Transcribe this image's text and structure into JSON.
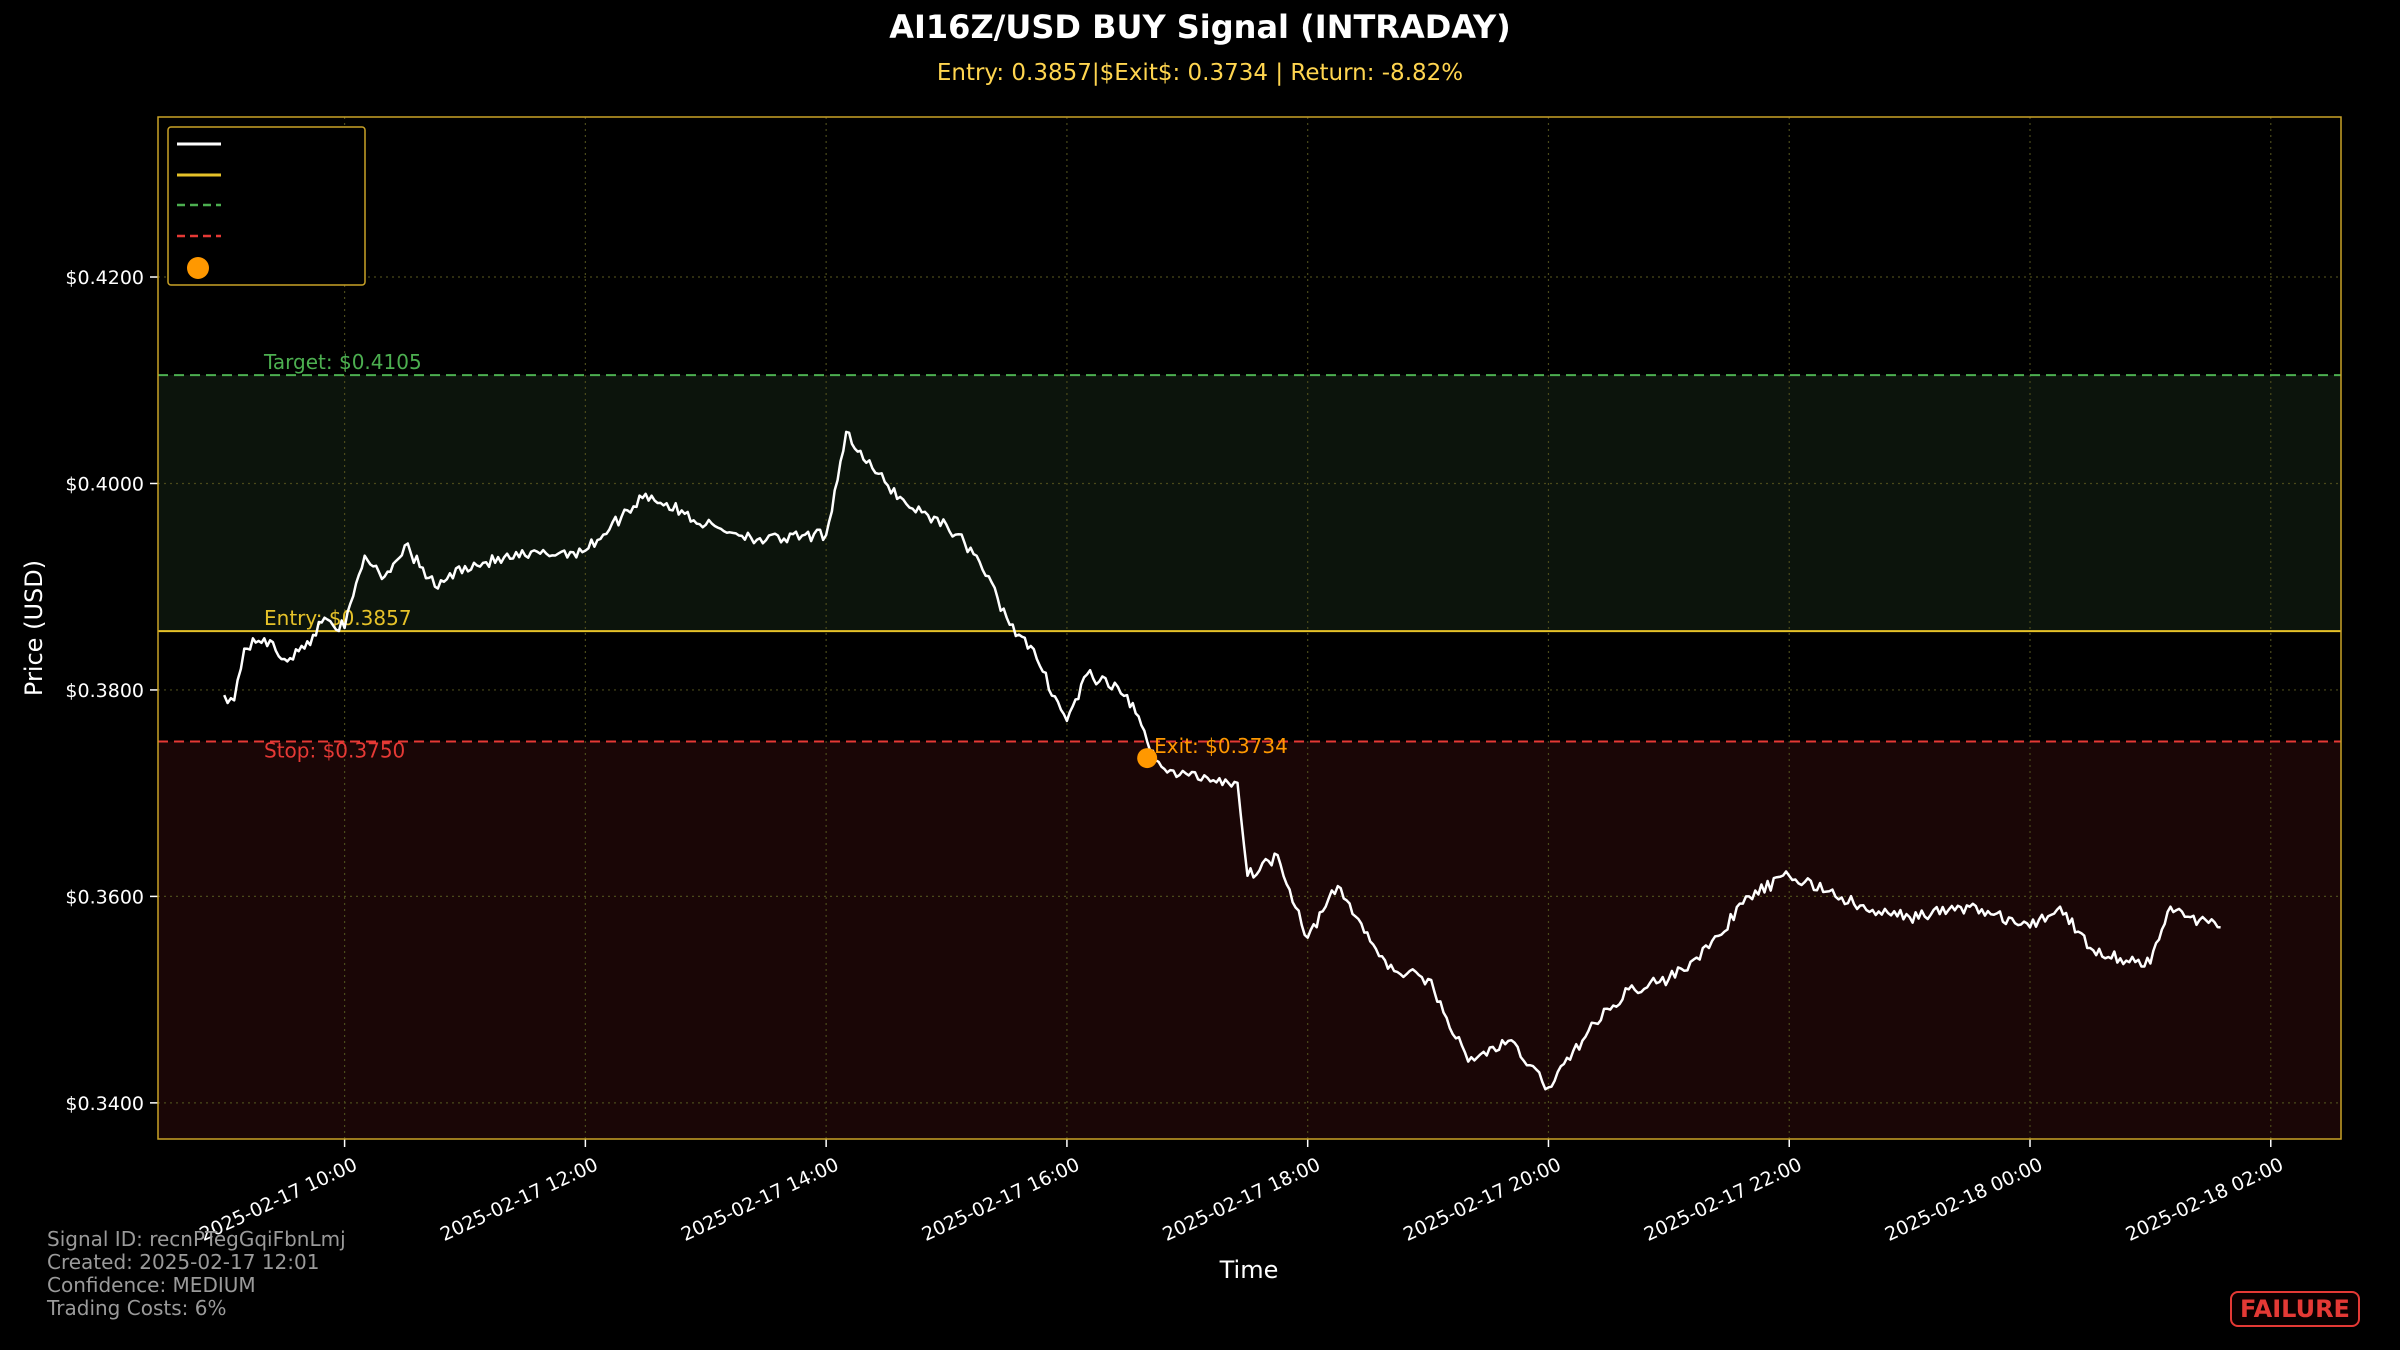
{
  "chart_data": {
    "type": "line",
    "title": "AI16Z/USD BUY Signal (INTRADAY)",
    "subtitle": "Entry: 0.3857|$Exit$: 0.3734 | Return: -8.82%",
    "xlabel": "Time",
    "ylabel": "Price (USD)",
    "x_ticks": [
      "2025-02-17 10:00",
      "2025-02-17 12:00",
      "2025-02-17 14:00",
      "2025-02-17 16:00",
      "2025-02-17 18:00",
      "2025-02-17 20:00",
      "2025-02-17 22:00",
      "2025-02-18 00:00",
      "2025-02-18 02:00"
    ],
    "y_ticks": [
      "$0.3400",
      "$0.3600",
      "$0.3800",
      "$0.4000",
      "$0.4200"
    ],
    "ylim": [
      0.3365,
      0.4355
    ],
    "grid": true,
    "legend_position": "upper-left",
    "levels": {
      "entry": {
        "value": 0.3857,
        "label": "Entry: $0.3857",
        "color": "#e6c229"
      },
      "target": {
        "value": 0.4105,
        "label": "Target: $0.4105",
        "color": "#4caf50"
      },
      "stop": {
        "value": 0.375,
        "label": "Stop: $0.3750",
        "color": "#e53935"
      },
      "exit": {
        "time": "2025-02-17 16:40",
        "value": 0.3734,
        "label": "Exit: $0.3734",
        "color": "#ff9800"
      }
    },
    "series": [
      {
        "color": "#ffffff",
        "points": [
          [
            "2025-02-17 09:00",
            0.3795
          ],
          [
            "2025-02-17 09:05",
            0.379
          ],
          [
            "2025-02-17 09:10",
            0.384
          ],
          [
            "2025-02-17 09:20",
            0.385
          ],
          [
            "2025-02-17 09:30",
            0.383
          ],
          [
            "2025-02-17 09:40",
            0.384
          ],
          [
            "2025-02-17 09:50",
            0.387
          ],
          [
            "2025-02-17 10:00",
            0.386
          ],
          [
            "2025-02-17 10:10",
            0.393
          ],
          [
            "2025-02-17 10:20",
            0.391
          ],
          [
            "2025-02-17 10:30",
            0.394
          ],
          [
            "2025-02-17 10:45",
            0.39
          ],
          [
            "2025-02-17 11:00",
            0.392
          ],
          [
            "2025-02-17 11:30",
            0.393
          ],
          [
            "2025-02-17 12:00",
            0.3935
          ],
          [
            "2025-02-17 12:30",
            0.399
          ],
          [
            "2025-02-17 13:00",
            0.396
          ],
          [
            "2025-02-17 13:30",
            0.3945
          ],
          [
            "2025-02-17 14:00",
            0.395
          ],
          [
            "2025-02-17 14:10",
            0.405
          ],
          [
            "2025-02-17 14:20",
            0.402
          ],
          [
            "2025-02-17 14:40",
            0.398
          ],
          [
            "2025-02-17 15:00",
            0.396
          ],
          [
            "2025-02-17 15:15",
            0.393
          ],
          [
            "2025-02-17 15:30",
            0.387
          ],
          [
            "2025-02-17 15:45",
            0.383
          ],
          [
            "2025-02-17 16:00",
            0.377
          ],
          [
            "2025-02-17 16:10",
            0.3815
          ],
          [
            "2025-02-17 16:30",
            0.3795
          ],
          [
            "2025-02-17 16:40",
            0.375
          ],
          [
            "2025-02-17 16:50",
            0.372
          ],
          [
            "2025-02-17 17:10",
            0.3715
          ],
          [
            "2025-02-17 17:25",
            0.371
          ],
          [
            "2025-02-17 17:30",
            0.362
          ],
          [
            "2025-02-17 17:45",
            0.364
          ],
          [
            "2025-02-17 18:00",
            0.356
          ],
          [
            "2025-02-17 18:15",
            0.361
          ],
          [
            "2025-02-17 18:40",
            0.353
          ],
          [
            "2025-02-17 19:00",
            0.352
          ],
          [
            "2025-02-17 19:20",
            0.344
          ],
          [
            "2025-02-17 19:40",
            0.346
          ],
          [
            "2025-02-17 20:00",
            0.3415
          ],
          [
            "2025-02-17 20:20",
            0.347
          ],
          [
            "2025-02-17 20:40",
            0.351
          ],
          [
            "2025-02-17 21:00",
            0.352
          ],
          [
            "2025-02-17 21:20",
            0.355
          ],
          [
            "2025-02-17 21:40",
            0.36
          ],
          [
            "2025-02-17 22:00",
            0.362
          ],
          [
            "2025-02-17 22:20",
            0.3605
          ],
          [
            "2025-02-17 22:40",
            0.3585
          ],
          [
            "2025-02-17 23:00",
            0.358
          ],
          [
            "2025-02-17 23:30",
            0.359
          ],
          [
            "2025-02-18 00:00",
            0.357
          ],
          [
            "2025-02-18 00:15",
            0.359
          ],
          [
            "2025-02-18 00:30",
            0.355
          ],
          [
            "2025-02-18 00:45",
            0.354
          ],
          [
            "2025-02-18 01:00",
            0.3535
          ],
          [
            "2025-02-18 01:10",
            0.359
          ],
          [
            "2025-02-18 01:20",
            0.358
          ],
          [
            "2025-02-18 01:35",
            0.357
          ]
        ]
      }
    ]
  },
  "footer": {
    "signal_id": "Signal ID: recnPTegGqiFbnLmj",
    "created": "Created: 2025-02-17 12:01",
    "confidence": "Confidence: MEDIUM",
    "trading_costs": "Trading Costs: 6%"
  },
  "status_badge": "FAILURE"
}
